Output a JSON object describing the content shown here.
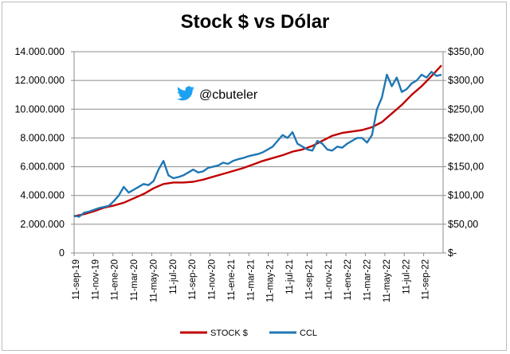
{
  "chart_data": {
    "type": "line",
    "title": "Stock $ vs Dólar",
    "annotation": {
      "icon": "twitter-bird-icon",
      "text": "@cbuteler"
    },
    "legend_position": "bottom",
    "grid": true,
    "x_ticks": [
      "11-sep-19",
      "11-nov-19",
      "11-ene-20",
      "11-mar-20",
      "11-may-20",
      "11-jul-20",
      "11-sep-20",
      "11-nov-20",
      "11-ene-21",
      "11-mar-21",
      "11-may-21",
      "11-jul-21",
      "11-sep-21",
      "11-nov-21",
      "11-ene-22",
      "11-mar-22",
      "11-may-22",
      "11-jul-22",
      "11-sep-22"
    ],
    "y_left": {
      "ticks": [
        "0",
        "2.000.000",
        "4.000.000",
        "6.000.000",
        "8.000.000",
        "10.000.000",
        "12.000.000",
        "14.000.000"
      ],
      "ylim": [
        0,
        14000000
      ]
    },
    "y_right": {
      "ticks": [
        "$-",
        "$50,00",
        "$100,00",
        "$150,00",
        "$200,00",
        "$250,00",
        "$300,00",
        "$350,00"
      ],
      "ylim": [
        0,
        350
      ]
    },
    "series": [
      {
        "name": "STOCK $",
        "color": "#c00000",
        "axis": "left",
        "x_index": [
          0,
          1,
          2,
          3,
          4,
          5,
          6,
          7,
          8,
          9,
          10,
          11,
          12,
          13,
          14,
          15,
          16,
          17,
          18,
          19,
          20,
          21,
          22,
          23,
          24,
          25,
          26,
          27,
          28,
          29,
          30,
          31,
          32,
          33,
          34,
          35,
          36,
          37
        ],
        "values": [
          2550000,
          2700000,
          2900000,
          3150000,
          3300000,
          3500000,
          3800000,
          4100000,
          4500000,
          4800000,
          4900000,
          4900000,
          4950000,
          5100000,
          5300000,
          5500000,
          5700000,
          5900000,
          6150000,
          6400000,
          6600000,
          6800000,
          7050000,
          7200000,
          7450000,
          7800000,
          8150000,
          8350000,
          8450000,
          8550000,
          8750000,
          9100000,
          9700000,
          10300000,
          11000000,
          11600000,
          12300000,
          13050000
        ]
      },
      {
        "name": "CCL",
        "color": "#1f77b4",
        "axis": "right",
        "x_index": [
          0,
          0.5,
          1,
          1.5,
          2,
          2.5,
          3,
          3.5,
          4,
          4.5,
          5,
          5.5,
          6,
          6.5,
          7,
          7.5,
          8,
          8.5,
          9,
          9.5,
          10,
          10.5,
          11,
          11.5,
          12,
          12.5,
          13,
          13.5,
          14,
          14.5,
          15,
          15.5,
          16,
          16.5,
          17,
          17.5,
          18,
          18.5,
          19,
          19.5,
          20,
          20.5,
          21,
          21.5,
          22,
          22.5,
          23,
          23.5,
          24,
          24.5,
          25,
          25.5,
          26,
          26.5,
          27,
          27.5,
          28,
          28.5,
          29,
          29.5,
          30,
          30.5,
          31,
          31.5,
          32,
          32.5,
          33,
          33.5,
          34,
          34.5,
          35,
          35.5,
          36,
          36.5,
          37
        ],
        "values": [
          65,
          63,
          70,
          72,
          75,
          78,
          80,
          82,
          90,
          100,
          115,
          105,
          110,
          115,
          120,
          118,
          125,
          145,
          160,
          135,
          130,
          132,
          135,
          140,
          145,
          140,
          142,
          148,
          150,
          152,
          157,
          155,
          160,
          163,
          165,
          168,
          170,
          172,
          175,
          180,
          185,
          195,
          205,
          200,
          210,
          190,
          185,
          180,
          178,
          195,
          190,
          180,
          178,
          185,
          183,
          190,
          195,
          200,
          200,
          192,
          205,
          250,
          270,
          310,
          290,
          305,
          280,
          285,
          295,
          300,
          310,
          305,
          315,
          308,
          310
        ]
      }
    ]
  }
}
